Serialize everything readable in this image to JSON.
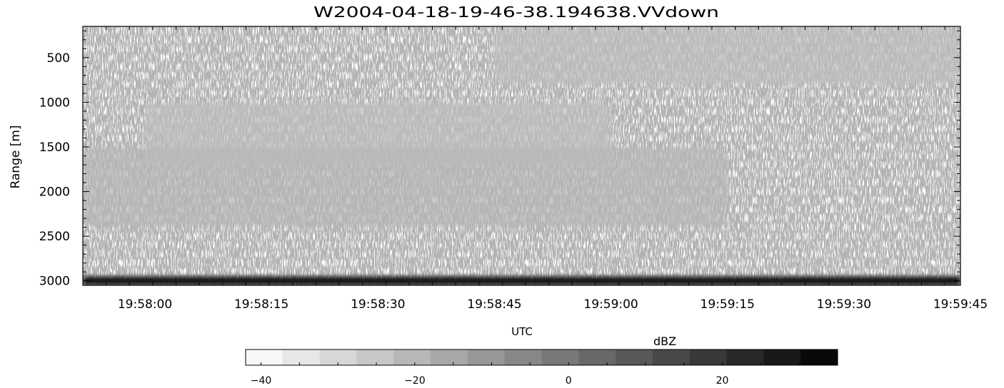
{
  "chart_data": {
    "type": "heatmap",
    "title": "W2004-04-18-19-46-38.194638.VVdown",
    "xlabel": "UTC",
    "ylabel": "Range [m]",
    "x_range": [
      "19:57:52",
      "19:59:45"
    ],
    "y_range": [
      3050,
      150
    ],
    "x_ticks": [
      "19:58:00",
      "19:58:15",
      "19:58:30",
      "19:58:45",
      "19:59:00",
      "19:59:15",
      "19:59:30",
      "19:59:45"
    ],
    "y_ticks": [
      500,
      1000,
      1500,
      2000,
      2500,
      3000
    ],
    "colorbar": {
      "label": "dBZ",
      "range": [
        -42,
        35
      ],
      "ticks": [
        -40,
        -20,
        0,
        20
      ],
      "levels": 16,
      "colormap": "white-to-black grayscale"
    },
    "features": [
      {
        "name": "upper cloud layer",
        "start": "19:58:45",
        "end": "19:59:45",
        "range_top_m": 150,
        "range_bottom_m": 800,
        "dbz": -22
      },
      {
        "name": "mid cloud layer",
        "start": "19:58:00",
        "end": "19:59:00",
        "range_top_m": 1000,
        "range_bottom_m": 1700,
        "dbz": -22
      },
      {
        "name": "sloping lower layer",
        "start": "19:57:52",
        "end": "19:59:15",
        "range_top_m": 1500,
        "range_bottom_m": 2400,
        "dbz": -20
      },
      {
        "name": "surface return",
        "start": "19:57:52",
        "end": "19:59:45",
        "range_top_m": 2950,
        "range_bottom_m": 3050,
        "dbz": 30
      }
    ]
  }
}
